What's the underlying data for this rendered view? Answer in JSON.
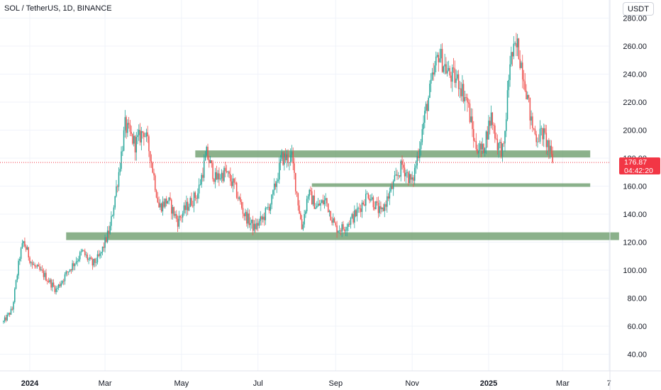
{
  "header": {
    "symbol_title": "SOL / TetherUS, 1D, BINANCE",
    "currency": "USDT"
  },
  "price_tag": {
    "price": "176.87",
    "countdown": "04:42:20"
  },
  "colors": {
    "up": "#26a69a",
    "down": "#ef5350",
    "zone": "#6e9d6e",
    "last_price": "#f23645",
    "grid": "#f0f3fa"
  },
  "chart_data": {
    "type": "candlestick",
    "title": "SOL / TetherUS, 1D, BINANCE",
    "ylabel": "USDT",
    "ylim": [
      28,
      290
    ],
    "y_ticks": [
      "40.00",
      "60.00",
      "80.00",
      "100.00",
      "120.00",
      "140.00",
      "160.00",
      "180.00",
      "200.00",
      "220.00",
      "240.00",
      "260.00",
      "280.00"
    ],
    "x_ticks": [
      "2024",
      "Mar",
      "May",
      "Jul",
      "Sep",
      "Nov",
      "2025",
      "Mar",
      "7"
    ],
    "x_tick_dates": [
      "2024-01-01",
      "2024-03-01",
      "2024-05-01",
      "2024-07-01",
      "2024-09-01",
      "2024-11-01",
      "2025-01-01",
      "2025-03-01",
      "2025-04-07"
    ],
    "date_range": [
      "2023-12-11",
      "2025-04-17"
    ],
    "last_price": 176.87,
    "grid": true,
    "price_path": [
      [
        "2023-12-11",
        63
      ],
      [
        "2023-12-18",
        72
      ],
      [
        "2023-12-24",
        110
      ],
      [
        "2023-12-27",
        120
      ],
      [
        "2024-01-03",
        104
      ],
      [
        "2024-01-12",
        97
      ],
      [
        "2024-01-22",
        86
      ],
      [
        "2024-02-01",
        100
      ],
      [
        "2024-02-12",
        113
      ],
      [
        "2024-02-20",
        104
      ],
      [
        "2024-02-26",
        110
      ],
      [
        "2024-03-05",
        130
      ],
      [
        "2024-03-12",
        170
      ],
      [
        "2024-03-17",
        203
      ],
      [
        "2024-03-25",
        190
      ],
      [
        "2024-04-01",
        200
      ],
      [
        "2024-04-06",
        183
      ],
      [
        "2024-04-13",
        145
      ],
      [
        "2024-04-20",
        150
      ],
      [
        "2024-04-28",
        135
      ],
      [
        "2024-05-05",
        145
      ],
      [
        "2024-05-14",
        155
      ],
      [
        "2024-05-21",
        183
      ],
      [
        "2024-05-28",
        165
      ],
      [
        "2024-06-05",
        170
      ],
      [
        "2024-06-12",
        160
      ],
      [
        "2024-06-20",
        140
      ],
      [
        "2024-06-28",
        130
      ],
      [
        "2024-07-05",
        137
      ],
      [
        "2024-07-12",
        150
      ],
      [
        "2024-07-20",
        180
      ],
      [
        "2024-07-28",
        180
      ],
      [
        "2024-08-05",
        130
      ],
      [
        "2024-08-10",
        155
      ],
      [
        "2024-08-17",
        145
      ],
      [
        "2024-08-24",
        150
      ],
      [
        "2024-09-01",
        130
      ],
      [
        "2024-09-07",
        130
      ],
      [
        "2024-09-17",
        140
      ],
      [
        "2024-09-27",
        155
      ],
      [
        "2024-10-07",
        140
      ],
      [
        "2024-10-14",
        155
      ],
      [
        "2024-10-24",
        175
      ],
      [
        "2024-11-01",
        162
      ],
      [
        "2024-11-06",
        185
      ],
      [
        "2024-11-12",
        215
      ],
      [
        "2024-11-22",
        255
      ],
      [
        "2024-11-30",
        240
      ],
      [
        "2024-12-08",
        235
      ],
      [
        "2024-12-15",
        220
      ],
      [
        "2024-12-21",
        190
      ],
      [
        "2024-12-27",
        185
      ],
      [
        "2025-01-03",
        210
      ],
      [
        "2025-01-08",
        190
      ],
      [
        "2025-01-13",
        185
      ],
      [
        "2025-01-18",
        250
      ],
      [
        "2025-01-24",
        260
      ],
      [
        "2025-01-30",
        235
      ],
      [
        "2025-02-04",
        205
      ],
      [
        "2025-02-08",
        195
      ],
      [
        "2025-02-13",
        198
      ],
      [
        "2025-02-17",
        190
      ],
      [
        "2025-02-21",
        176.87
      ]
    ],
    "annotations": [
      {
        "type": "horizontal_zone",
        "price_low": 180.5,
        "price_high": 185.5,
        "start": "2024-05-12",
        "end": "2025-03-23"
      },
      {
        "type": "horizontal_zone",
        "price_low": 159.5,
        "price_high": 162,
        "start": "2024-08-13",
        "end": "2025-03-23"
      },
      {
        "type": "horizontal_zone",
        "price_low": 121.5,
        "price_high": 127,
        "start": "2024-01-30",
        "end": "2025-04-15"
      }
    ]
  }
}
